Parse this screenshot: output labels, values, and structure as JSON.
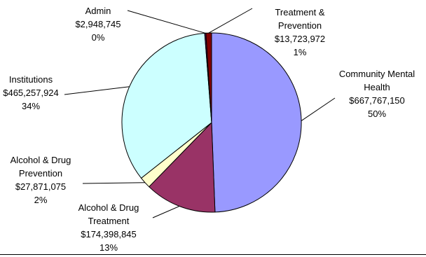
{
  "chart_data": {
    "type": "pie",
    "slices": [
      {
        "name": "Community Mental Health",
        "label_lines": [
          "Community Mental",
          "Health"
        ],
        "amount": "$667,767,150",
        "percent": "50%",
        "value": 667767150,
        "color": "#9999ff"
      },
      {
        "name": "Alcohol & Drug Treatment",
        "label_lines": [
          "Alcohol & Drug",
          "Treatment"
        ],
        "amount": "$174,398,845",
        "percent": "13%",
        "value": 174398845,
        "color": "#993366"
      },
      {
        "name": "Alcohol & Drug Prevention",
        "label_lines": [
          "Alcohol & Drug",
          "Prevention"
        ],
        "amount": "$27,871,075",
        "percent": "2%",
        "value": 27871075,
        "color": "#ffffcc"
      },
      {
        "name": "Institutions",
        "label_lines": [
          "Institutions"
        ],
        "amount": "$465,257,924",
        "percent": "34%",
        "value": 465257924,
        "color": "#ccffff"
      },
      {
        "name": "Admin",
        "label_lines": [
          "Admin"
        ],
        "amount": "$2,948,745",
        "percent": "0%",
        "value": 2948745,
        "color": "#660066"
      },
      {
        "name": "Treatment & Prevention",
        "label_lines": [
          "Treatment &",
          "Prevention"
        ],
        "amount": "$13,723,972",
        "percent": "1%",
        "value": 13723972,
        "color": "#800000"
      }
    ],
    "title": "",
    "legend": "none",
    "data_labels": "outside-with-leader-lines"
  }
}
